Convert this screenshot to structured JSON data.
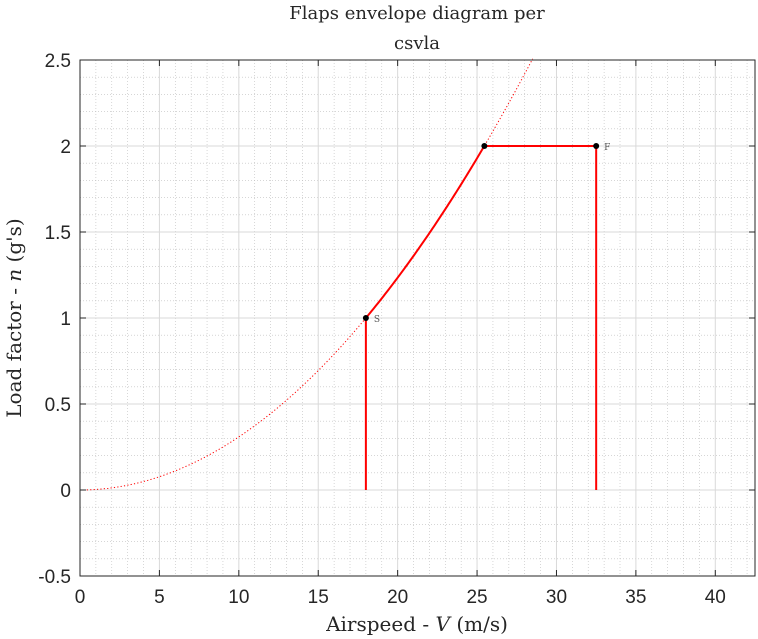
{
  "chart_data": {
    "type": "line",
    "title_line1": "Flaps envelope diagram per",
    "title_line2": "csvla",
    "xlabel_text": "Airspeed - ",
    "xlabel_var": "V",
    "xlabel_unit": " (m/s)",
    "ylabel_text": "Load factor - ",
    "ylabel_var": "n",
    "ylabel_unit": " (g's)",
    "xlim": [
      0,
      42.5
    ],
    "ylim": [
      -0.5,
      2.5
    ],
    "xticks": [
      0,
      5,
      10,
      15,
      20,
      25,
      30,
      35,
      40
    ],
    "yticks": [
      -0.5,
      0,
      0.5,
      1,
      1.5,
      2,
      2.5
    ],
    "xtick_labels": [
      "0",
      "5",
      "10",
      "15",
      "20",
      "25",
      "30",
      "35",
      "40"
    ],
    "ytick_labels": [
      "-0.5",
      "0",
      "0.5",
      "1",
      "1.5",
      "2",
      "2.5"
    ],
    "grid": true,
    "minor_grid": true,
    "colors": {
      "envelope": "#ff0000",
      "stall_curve": "#ff0000",
      "points": "#000000",
      "grid": "#d9d9d9",
      "minor_grid": "#bdbdbd"
    },
    "stall_curve": {
      "style": "dotted",
      "equation": "n = (V / 18)^2",
      "x_range": [
        0,
        28.5
      ]
    },
    "envelope_segments": [
      {
        "kind": "line",
        "points": [
          [
            18,
            0
          ],
          [
            18,
            1
          ]
        ]
      },
      {
        "kind": "curve",
        "equation": "n = (V / 18)^2",
        "x_range": [
          18,
          25.46
        ]
      },
      {
        "kind": "line",
        "points": [
          [
            25.46,
            2
          ],
          [
            32.5,
            2
          ]
        ]
      },
      {
        "kind": "line",
        "points": [
          [
            32.5,
            2
          ],
          [
            32.5,
            0
          ]
        ]
      }
    ],
    "points": [
      {
        "x": 18,
        "y": 1,
        "label": "S"
      },
      {
        "x": 25.46,
        "y": 2,
        "label": ""
      },
      {
        "x": 32.5,
        "y": 2,
        "label": "F"
      }
    ]
  }
}
